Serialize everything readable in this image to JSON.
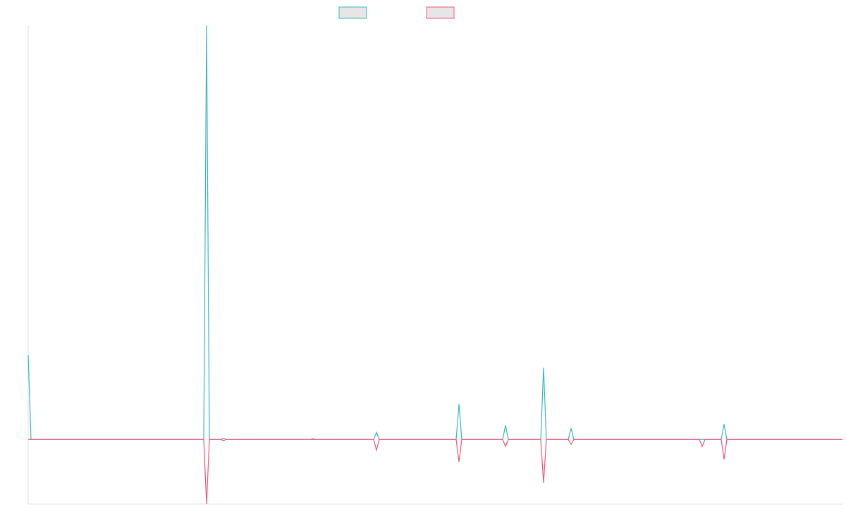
{
  "chart_data": {
    "type": "line",
    "x": [
      0,
      1,
      62.25,
      63.25,
      64.25,
      68.25,
      69.25,
      70.25,
      100,
      101,
      102,
      122.5,
      123.5,
      124.5,
      151.75,
      152.75,
      153.75,
      168.25,
      169.25,
      170.25,
      181.75,
      182.75,
      183.75,
      191.5,
      192.5,
      193.5,
      238,
      239,
      240,
      245.75,
      246.75,
      247.75,
      288.75
    ],
    "series": [
      {
        "color": "#36b9b8",
        "values": [
          20.4,
          0,
          0,
          100,
          0,
          0,
          0.3,
          0,
          0,
          0.2,
          0,
          0,
          1.7,
          0,
          0,
          8.5,
          0,
          0,
          3.4,
          0,
          0,
          17.3,
          0,
          0,
          2.7,
          0,
          0,
          0,
          0,
          0,
          3.7,
          0,
          0
        ]
      },
      {
        "color": "#f0557a",
        "values": [
          0,
          0,
          0,
          -15.6,
          0,
          0,
          -0.3,
          0,
          0,
          0,
          0,
          0,
          -2.6,
          0,
          0,
          -5.4,
          0,
          0,
          -1.7,
          0,
          0,
          -10.5,
          0,
          0,
          -1.2,
          0,
          0,
          -1.7,
          0,
          0,
          -4.8,
          0,
          0
        ]
      }
    ],
    "xlim": [
      0,
      288.75
    ],
    "ylim": [
      -15.6,
      100
    ]
  }
}
